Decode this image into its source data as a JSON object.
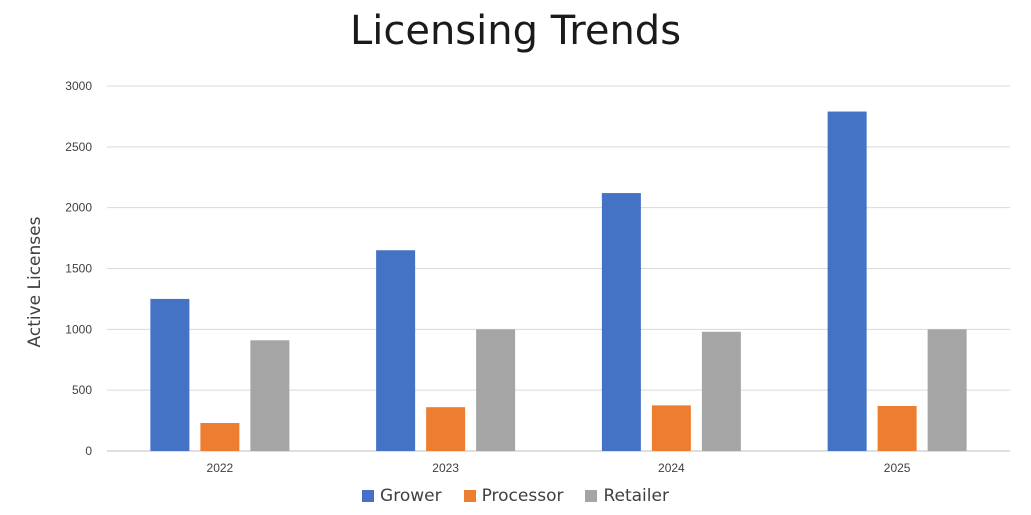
{
  "chart_data": {
    "type": "bar",
    "title": "Licensing Trends",
    "xlabel": "",
    "ylabel": "Active Licenses",
    "categories": [
      "2022",
      "2023",
      "2024",
      "2025"
    ],
    "series": [
      {
        "name": "Grower",
        "color": "#4472C4",
        "values": [
          1250,
          1650,
          2120,
          2790
        ]
      },
      {
        "name": "Processor",
        "color": "#ED7D31",
        "values": [
          230,
          360,
          375,
          370
        ]
      },
      {
        "name": "Retailer",
        "color": "#A5A5A5",
        "values": [
          910,
          1000,
          980,
          1000
        ]
      }
    ],
    "ylim": [
      0,
      3000
    ],
    "yticks": [
      0,
      500,
      1000,
      1500,
      2000,
      2500,
      3000
    ],
    "grid": true,
    "legend_position": "bottom"
  }
}
